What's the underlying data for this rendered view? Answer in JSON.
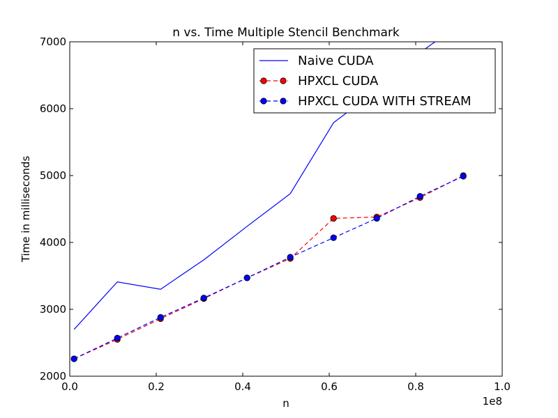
{
  "chart_data": {
    "type": "line",
    "title": "n vs. Time Multiple Stencil Benchmark",
    "xlabel": "n",
    "ylabel": "Time in milliseconds",
    "x_scale_label": "1e8",
    "xlim": [
      0,
      100000000
    ],
    "ylim": [
      2000,
      7000
    ],
    "x_ticks": [
      0,
      20000000,
      40000000,
      60000000,
      80000000,
      100000000
    ],
    "x_tick_labels": [
      "0.0",
      "0.2",
      "0.4",
      "0.6",
      "0.8",
      "1.0"
    ],
    "y_ticks": [
      2000,
      3000,
      4000,
      5000,
      6000,
      7000
    ],
    "y_tick_labels": [
      "2000",
      "3000",
      "4000",
      "5000",
      "6000",
      "7000"
    ],
    "grid": false,
    "legend_position": "top-right",
    "x": [
      1000000,
      11000000,
      21000000,
      31000000,
      41000000,
      51000000,
      61000000,
      71000000,
      81000000,
      91000000
    ],
    "series": [
      {
        "name": "Naive CUDA",
        "color": "#0000ff",
        "style": "solid",
        "marker": "none",
        "values": [
          2700,
          3410,
          3300,
          3740,
          4240,
          4730,
          5790,
          6280,
          6840,
          7300
        ]
      },
      {
        "name": "HPXCL CUDA",
        "color": "#ff0000",
        "style": "dashed",
        "marker": "circle",
        "values": [
          2260,
          2550,
          2860,
          3160,
          3470,
          3760,
          4360,
          4380,
          4670,
          5000
        ]
      },
      {
        "name": "HPXCL CUDA WITH STREAM",
        "color": "#0000ff",
        "style": "dashed",
        "marker": "circle",
        "values": [
          2260,
          2570,
          2880,
          3170,
          3470,
          3780,
          4070,
          4360,
          4690,
          4990
        ]
      }
    ]
  }
}
